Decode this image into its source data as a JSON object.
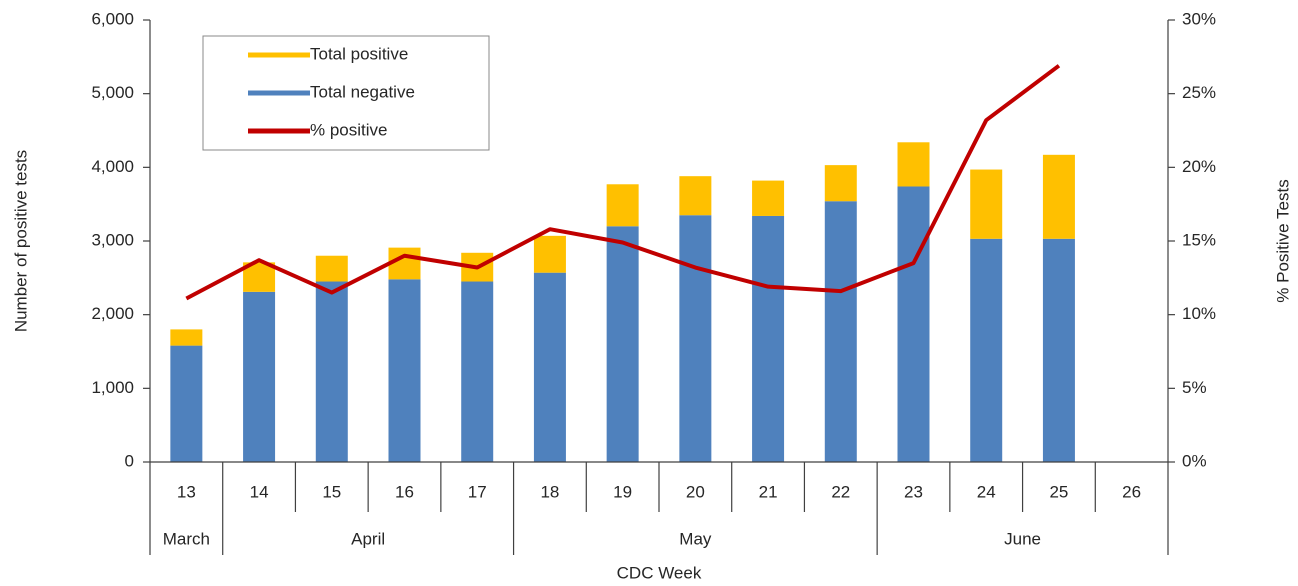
{
  "chart_data": {
    "type": "bar",
    "stacked": true,
    "x_label": "CDC Week",
    "y_label": "Number of positive tests",
    "y2_label": "% Positive Tests",
    "categories": [
      "13",
      "14",
      "15",
      "16",
      "17",
      "18",
      "19",
      "20",
      "21",
      "22",
      "23",
      "24",
      "25",
      "26"
    ],
    "groups": [
      "March",
      "April",
      null,
      null,
      null,
      "May",
      null,
      null,
      null,
      null,
      "June",
      null,
      null,
      null
    ],
    "series": [
      {
        "name": "Total positive",
        "type": "bar",
        "color": "#FFC000",
        "values": [
          220,
          400,
          350,
          430,
          390,
          500,
          570,
          530,
          480,
          490,
          600,
          940,
          1140,
          null
        ]
      },
      {
        "name": "Total negative",
        "type": "bar",
        "color": "#4F81BD",
        "values": [
          1580,
          2310,
          2450,
          2480,
          2450,
          2570,
          3200,
          3350,
          3340,
          3540,
          3740,
          3030,
          3030,
          null
        ]
      },
      {
        "name": "% positive",
        "type": "line",
        "axis": "y2",
        "color": "#C00000",
        "values": [
          11.1,
          13.7,
          11.5,
          14.0,
          13.2,
          15.8,
          14.9,
          13.2,
          11.9,
          11.6,
          13.5,
          23.2,
          26.9,
          null
        ]
      }
    ],
    "ylim": [
      0,
      6000
    ],
    "yticks": [
      0,
      {
        "value": 1000,
        "label": "1,000"
      },
      {
        "value": 2000,
        "label": "2,000"
      },
      {
        "value": 3000,
        "label": "3,000"
      },
      {
        "value": 4000,
        "label": "4,000"
      },
      {
        "value": 5000,
        "label": "5,000"
      },
      {
        "value": 6000,
        "label": "6,000"
      }
    ],
    "y2lim": [
      0,
      30
    ],
    "y2ticks": [
      {
        "value": 0,
        "label": "0%"
      },
      {
        "value": 5,
        "label": "5%"
      },
      {
        "value": 10,
        "label": "10%"
      },
      {
        "value": 15,
        "label": "15%"
      },
      {
        "value": 20,
        "label": "20%"
      },
      {
        "value": 25,
        "label": "25%"
      },
      {
        "value": 30,
        "label": "30%"
      }
    ],
    "grid": false,
    "legend": "top-left"
  }
}
